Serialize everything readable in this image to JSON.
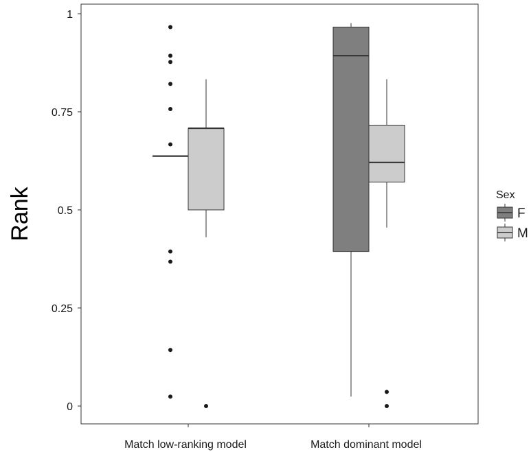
{
  "chart_data": {
    "type": "boxplot",
    "title": "",
    "xlabel": "",
    "ylabel": "Rank",
    "ylim": [
      -0.045,
      1.025
    ],
    "yticks": [
      0,
      0.25,
      0.5,
      0.75,
      1
    ],
    "ytick_labels": [
      "0",
      "0.25",
      "0.5",
      "0.75",
      "1"
    ],
    "categories": [
      "Match low-ranking model",
      "Match dominant model"
    ],
    "grid": false,
    "legend": {
      "title": "Sex",
      "position": "right",
      "entries": [
        {
          "name": "F",
          "color": "#7f7f7f"
        },
        {
          "name": "M",
          "color": "#cccccc"
        }
      ]
    },
    "series": [
      {
        "name": "F",
        "color": "#7f7f7f",
        "boxes": [
          {
            "category": "Match low-ranking model",
            "lower_whisker": 0.637,
            "q1": 0.637,
            "median": 0.637,
            "q3": 0.637,
            "upper_whisker": 0.637,
            "outliers": [
              0.966,
              0.893,
              0.877,
              0.821,
              0.757,
              0.667,
              0.394,
              0.368,
              0.143,
              0.024
            ]
          },
          {
            "category": "Match dominant model",
            "lower_whisker": 0.024,
            "q1": 0.394,
            "median": 0.893,
            "q3": 0.966,
            "upper_whisker": 0.976,
            "outliers": []
          }
        ]
      },
      {
        "name": "M",
        "color": "#cccccc",
        "boxes": [
          {
            "category": "Match low-ranking model",
            "lower_whisker": 0.43,
            "q1": 0.5,
            "median": 0.708,
            "q3": 0.708,
            "upper_whisker": 0.833,
            "outliers": [
              0
            ]
          },
          {
            "category": "Match dominant model",
            "lower_whisker": 0.455,
            "q1": 0.571,
            "median": 0.621,
            "q3": 0.716,
            "upper_whisker": 0.833,
            "outliers": [
              0.036,
              0
            ]
          }
        ]
      }
    ]
  }
}
